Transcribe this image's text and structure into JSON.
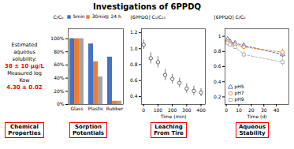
{
  "title": "Investigations of 6PPDQ",
  "chart_data": [
    {
      "type": "text",
      "title": "Chemical\nProperties",
      "annotations": [
        {
          "text": "Estimated aqueous"
        },
        {
          "text": "solubility:"
        },
        {
          "text": "38 ± 10 μg/L",
          "color": "red"
        },
        {
          "text": "Measured log"
        },
        {
          "text": "Kow"
        },
        {
          "text": "4.30 ± 0.02",
          "color": "red"
        }
      ]
    },
    {
      "type": "bar",
      "title": "Sorption\nPotentials",
      "categories": [
        "Glass",
        "Plastic",
        "Rubber"
      ],
      "series": [
        {
          "name": "5min",
          "color": "#4472C4",
          "values": [
            100,
            92,
            72
          ]
        },
        {
          "name": "30min",
          "color": "#ED7D31",
          "values": [
            100,
            65,
            5
          ]
        },
        {
          "name": "24 h",
          "color": "#A5A5A5",
          "values": [
            100,
            42,
            5
          ]
        }
      ],
      "ylabel": "C/C₀",
      "ylim": [
        0,
        115
      ],
      "yticks": [
        {
          "value": 0,
          "label": "0%"
        },
        {
          "value": 20,
          "label": "20%"
        },
        {
          "value": 40,
          "label": "40%"
        },
        {
          "value": 60,
          "label": "60%"
        },
        {
          "value": 80,
          "label": "80%"
        },
        {
          "value": 100,
          "label": "100%"
        }
      ],
      "legend": "top"
    },
    {
      "type": "scatter",
      "title": "Leaching\nFrom Tire",
      "x": [
        0,
        50,
        100,
        150,
        200,
        250,
        300,
        350,
        400
      ],
      "series": [
        {
          "color": "#555555",
          "marker": "circle",
          "values": [
            1.05,
            0.88,
            0.83,
            0.67,
            0.62,
            0.57,
            0.5,
            0.47,
            0.45
          ],
          "yerr": [
            0.06,
            0.07,
            0.07,
            0.07,
            0.06,
            0.06,
            0.06,
            0.06,
            0.05
          ]
        }
      ],
      "xlabel": "Time (min)",
      "ylabel": "[6PPDQ] C₁/C₁₅",
      "xlim": [
        -15,
        430
      ],
      "xticks": [
        0,
        100,
        200,
        300,
        400
      ],
      "ylim": [
        0.3,
        1.25
      ],
      "yticks": [
        0.4,
        0.6,
        0.8,
        {
          "value": 1.0,
          "label": "1.0"
        },
        1.2
      ]
    },
    {
      "type": "line",
      "title": "Aqueous\nStability",
      "x": [
        1,
        3,
        7,
        14,
        45
      ],
      "series": [
        {
          "name": "pH5",
          "color": "#4472C4",
          "marker": "triangle",
          "line_style": "dashed",
          "values": [
            0.96,
            0.93,
            0.91,
            0.88,
            0.76
          ],
          "yerr": [
            0.03,
            0.03,
            0.03,
            0.03,
            0.04
          ]
        },
        {
          "name": "pH7",
          "color": "#ED7D31",
          "marker": "circle",
          "line_style": "dashed",
          "values": [
            0.93,
            0.91,
            0.89,
            0.86,
            0.79
          ],
          "yerr": [
            0.03,
            0.03,
            0.03,
            0.03,
            0.04
          ]
        },
        {
          "name": "pH9",
          "color": "#AAAAAA",
          "marker": "square",
          "line_style": "dashed",
          "values": [
            0.91,
            0.89,
            0.86,
            0.76,
            0.66
          ],
          "yerr": [
            0.03,
            0.03,
            0.03,
            0.04,
            0.05
          ]
        }
      ],
      "xlabel": "Time (d)",
      "ylabel": "[6PPDQ] C/C₀",
      "xlim": [
        -1,
        50
      ],
      "xticks": [
        0,
        10,
        20,
        30,
        40
      ],
      "ylim": [
        0.1,
        1.1
      ],
      "yticks": [
        0.2,
        0.4,
        0.6,
        0.8,
        1
      ],
      "legend": "lower left"
    }
  ]
}
